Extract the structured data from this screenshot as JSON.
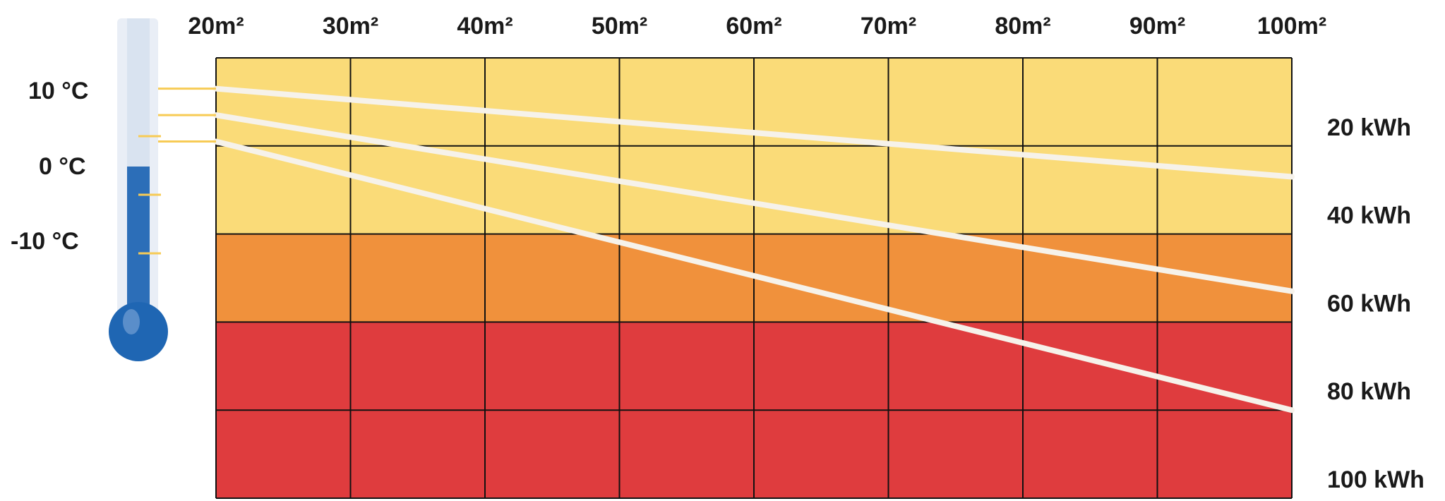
{
  "chart_data": {
    "type": "line",
    "x_tick_labels": [
      "20m²",
      "30m²",
      "40m²",
      "50m²",
      "60m²",
      "70m²",
      "80m²",
      "90m²",
      "100m²"
    ],
    "x": [
      20,
      30,
      40,
      50,
      60,
      70,
      80,
      90,
      100
    ],
    "xlim": [
      20,
      100
    ],
    "y_tick_labels": [
      "20 kWh",
      "40 kWh",
      "60 kWh",
      "80 kWh",
      "100 kWh"
    ],
    "y_ticks": [
      20,
      40,
      60,
      80,
      100
    ],
    "ylim": [
      0,
      100
    ],
    "y_inverted": true,
    "bands": [
      {
        "from": 0,
        "to": 40,
        "color": "#FADB78"
      },
      {
        "from": 40,
        "to": 60,
        "color": "#F0913C"
      },
      {
        "from": 60,
        "to": 100,
        "color": "#DF3C3E"
      }
    ],
    "grid": true,
    "series": [
      {
        "temperature": "10 °C",
        "values": [
          [
            20,
            7
          ],
          [
            100,
            27
          ]
        ]
      },
      {
        "temperature": "0 °C",
        "values": [
          [
            20,
            13
          ],
          [
            100,
            53
          ]
        ]
      },
      {
        "temperature": "-10 °C",
        "values": [
          [
            20,
            19
          ],
          [
            100,
            80
          ]
        ]
      }
    ],
    "temperature_labels": [
      "10 °C",
      "0 °C",
      "-10 °C"
    ],
    "colors": {
      "line": "#F6F2EA",
      "grid": "#111111",
      "thermo_tube": "#DEE7F3",
      "thermo_fill": "#2C6EB8",
      "thermo_tick": "#F7CB55"
    }
  }
}
